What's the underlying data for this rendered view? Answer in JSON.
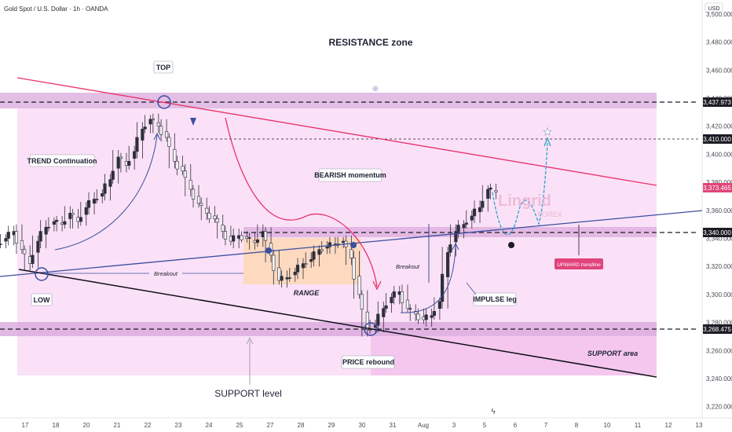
{
  "header": {
    "symbol_title": "Gold Spot / U.S. Dollar · 1h · OANDA",
    "currency": "USD"
  },
  "watermark": {
    "brand_line1": "Lingrid",
    "brand_line2": "FOREX"
  },
  "colors": {
    "background": "#ffffff",
    "zone_fill": "#f7c8f0",
    "band_fill": "#d9a8dc",
    "bull_candle": "#2d2f3b",
    "bear_candle": "#f5f5f7",
    "channel_top": "#e8326a",
    "trendline": "#3b4fa0",
    "support_line": "#0f0f18",
    "range_box": "#fbd7b5",
    "projection": "#29a3c6",
    "price_badge": "#e0447a",
    "level_badge": "#1b1c24"
  },
  "chart_data": {
    "type": "line",
    "title": "Gold Spot / U.S. Dollar · 1h · OANDA",
    "ylabel": "USD",
    "ylim": [
      3212,
      3510
    ],
    "x_tick_labels": [
      "17",
      "18",
      "20",
      "21",
      "22",
      "23",
      "24",
      "25",
      "27",
      "28",
      "29",
      "30",
      "31",
      "Aug",
      "3",
      "5",
      "6",
      "7",
      "8",
      "10",
      "11",
      "12",
      "13"
    ],
    "y_tick_labels": [
      "3,500.000",
      "3,480.000",
      "3,460.000",
      "3,440.000",
      "3,420.000",
      "3,400.000",
      "3,380.000",
      "3,360.000",
      "3,340.000",
      "3,320.000",
      "3,300.000",
      "3,280.000",
      "3,260.000",
      "3,240.000",
      "3,220.000"
    ],
    "series": [
      {
        "name": "XAUUSD",
        "x": [
          17,
          17.3,
          17.6,
          17.9,
          18.2,
          18.5,
          18.8,
          19.1,
          19.4,
          19.7,
          20,
          20.3,
          20.6,
          20.9,
          21.2,
          21.5,
          21.8,
          22.1,
          22.4,
          22.7,
          23,
          23.3,
          23.6,
          23.9,
          24.2,
          24.5,
          24.8,
          25.1,
          25.4,
          25.7,
          26,
          26.3,
          26.6,
          26.9,
          27.2,
          27.5,
          27.8,
          28.1,
          28.4,
          28.7,
          29,
          29.3,
          29.6,
          29.9,
          30.2,
          30.5,
          30.8,
          31.1,
          31.4,
          31.7,
          32,
          32.3,
          32.6,
          32.9,
          33.2,
          33.5,
          33.8,
          34.1,
          34.4,
          34.7,
          35,
          35.3
        ],
        "close": [
          3340,
          3345,
          3332,
          3322,
          3338,
          3348,
          3352,
          3350,
          3358,
          3352,
          3362,
          3368,
          3372,
          3382,
          3398,
          3392,
          3402,
          3418,
          3425,
          3420,
          3412,
          3395,
          3388,
          3375,
          3365,
          3358,
          3354,
          3345,
          3338,
          3342,
          3340,
          3337,
          3345,
          3328,
          3310,
          3312,
          3316,
          3322,
          3325,
          3332,
          3334,
          3336,
          3338,
          3326,
          3300,
          3275,
          3278,
          3290,
          3298,
          3302,
          3290,
          3286,
          3282,
          3285,
          3295,
          3330,
          3345,
          3350,
          3356,
          3362,
          3375,
          3373
        ]
      }
    ],
    "horizontal_levels": [
      {
        "label": "3,437.973",
        "value": 3437.973
      },
      {
        "label": "3,410.000",
        "value": 3410.0
      },
      {
        "label": "3,340.000",
        "value": 3340.0
      },
      {
        "label": "3,268.475",
        "value": 3268.475
      }
    ],
    "last_price": {
      "label": "3,373.465",
      "value": 3373.465
    },
    "zones": [
      {
        "label": "RESISTANCE zone",
        "low": 3432,
        "high": 3443
      },
      {
        "label": "SUPPORT area",
        "low": 3262,
        "high": 3273
      }
    ],
    "annotations": {
      "top": "TOP",
      "low": "LOW",
      "trend_continuation": "TREND Continuation",
      "bearish_momentum": "BEARISH momentum",
      "breakout_left": "Breakout",
      "breakout_right": "Breakout",
      "range": "RANGE",
      "price_rebound": "PRICE rebound",
      "impulse_leg": "IMPULSE leg",
      "upward_trendline": "UPWARD trendline",
      "support_level": "SUPPORT level",
      "resistance_zone": "RESISTANCE zone",
      "support_area": "SUPPORT area"
    }
  }
}
